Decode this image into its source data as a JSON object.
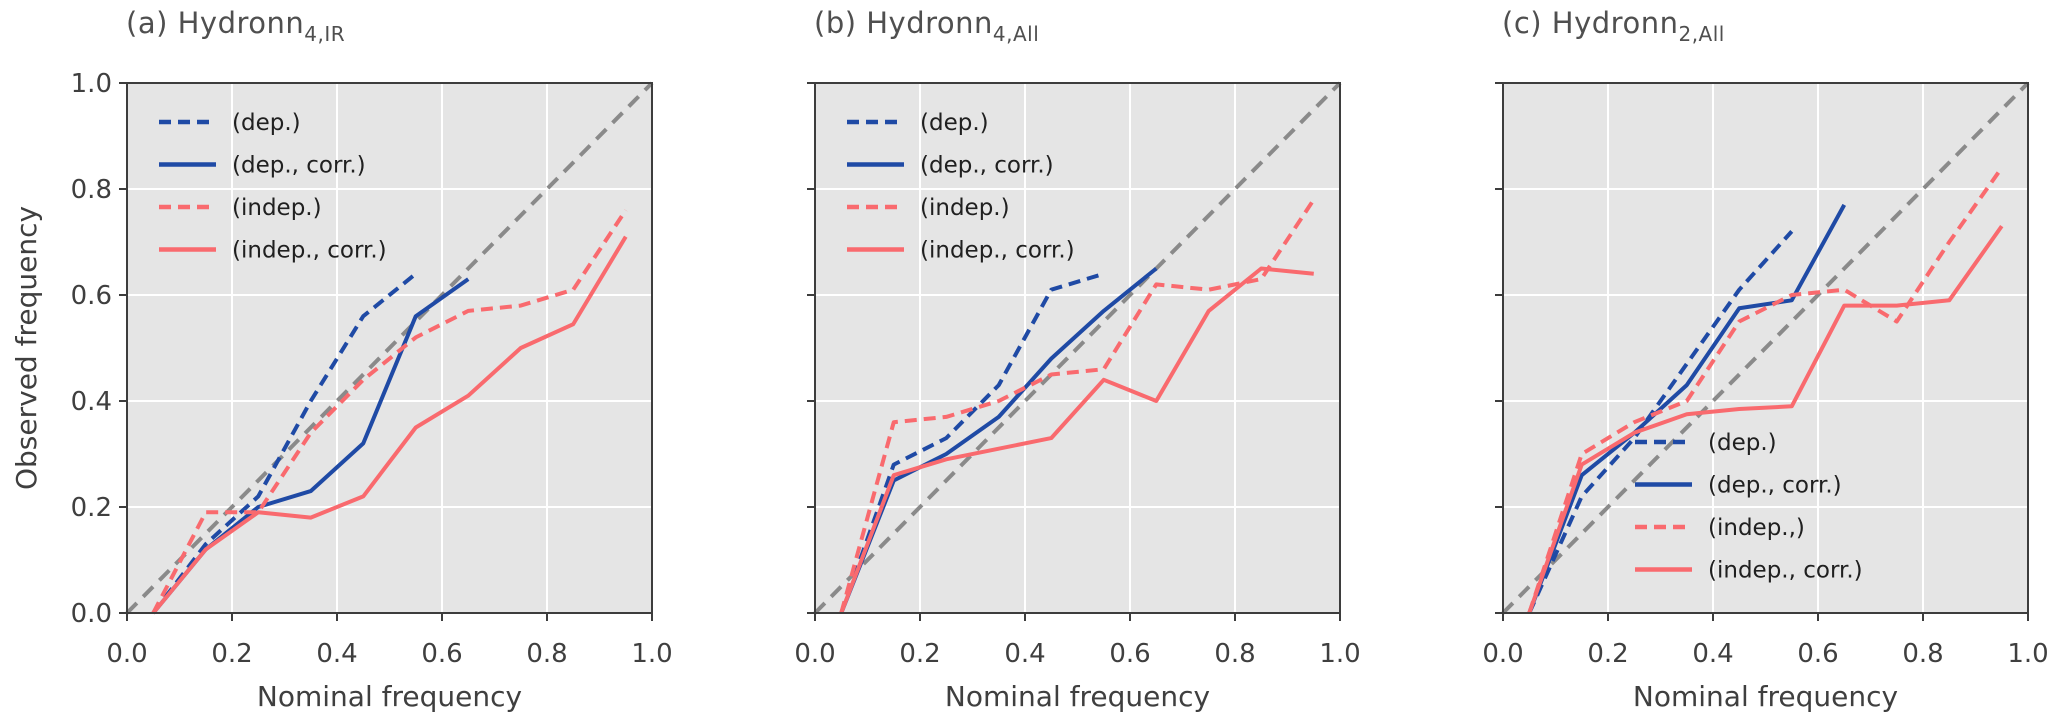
{
  "axis": {
    "xlabel": "Nominal frequency",
    "ylabel": "Observed frequency",
    "tick_labels": [
      "0.0",
      "0.2",
      "0.4",
      "0.6",
      "0.8",
      "1.0"
    ],
    "tick_values": [
      0,
      0.2,
      0.4,
      0.6,
      0.8,
      1
    ],
    "xlim": [
      0,
      1
    ],
    "ylim": [
      0,
      1
    ],
    "grid": true
  },
  "palette": {
    "blue": "#1f4aa5",
    "red": "#f96a6e",
    "diagonal_gray": "#8a8a8a",
    "plot_background": "#e5e5e5",
    "gridline": "#ffffff",
    "spine": "#3d3d3d",
    "tick_text": "#3f3f3f",
    "title_text": "#4f4f4f",
    "legend_text": "#202020"
  },
  "chart_data": [
    {
      "id": "a",
      "type": "line",
      "title_main": "(a) Hydronn",
      "title_sub": "4,IR",
      "legend_position": "upper-left",
      "diagonal_reference": true,
      "series": [
        {
          "key": "dep",
          "label": "(dep.)",
          "color": "#1f4aa5",
          "dashed": true,
          "x": [
            0.05,
            0.15,
            0.25,
            0.35,
            0.45,
            0.55
          ],
          "y": [
            0.0,
            0.13,
            0.22,
            0.4,
            0.56,
            0.64
          ]
        },
        {
          "key": "dep_corr",
          "label": "(dep., corr.)",
          "color": "#1f4aa5",
          "dashed": false,
          "x": [
            0.05,
            0.15,
            0.25,
            0.35,
            0.45,
            0.55,
            0.65
          ],
          "y": [
            0.0,
            0.12,
            0.2,
            0.23,
            0.32,
            0.56,
            0.63
          ]
        },
        {
          "key": "indep",
          "label": "(indep.)",
          "color": "#f96a6e",
          "dashed": true,
          "x": [
            0.05,
            0.15,
            0.25,
            0.35,
            0.45,
            0.55,
            0.65,
            0.75,
            0.85,
            0.95
          ],
          "y": [
            0.0,
            0.19,
            0.19,
            0.34,
            0.44,
            0.52,
            0.57,
            0.58,
            0.61,
            0.76
          ]
        },
        {
          "key": "indep_corr",
          "label": "(indep., corr.)",
          "color": "#f96a6e",
          "dashed": false,
          "x": [
            0.05,
            0.15,
            0.25,
            0.35,
            0.45,
            0.55,
            0.65,
            0.75,
            0.85,
            0.95
          ],
          "y": [
            0.0,
            0.12,
            0.19,
            0.18,
            0.22,
            0.35,
            0.41,
            0.5,
            0.545,
            0.71
          ]
        }
      ]
    },
    {
      "id": "b",
      "type": "line",
      "title_main": "(b) Hydronn",
      "title_sub": "4,All",
      "legend_position": "upper-left",
      "diagonal_reference": true,
      "series": [
        {
          "key": "dep",
          "label": "(dep.)",
          "color": "#1f4aa5",
          "dashed": true,
          "x": [
            0.05,
            0.15,
            0.25,
            0.35,
            0.45,
            0.55
          ],
          "y": [
            0.0,
            0.28,
            0.33,
            0.43,
            0.61,
            0.64
          ]
        },
        {
          "key": "dep_corr",
          "label": "(dep., corr.)",
          "color": "#1f4aa5",
          "dashed": false,
          "x": [
            0.05,
            0.15,
            0.25,
            0.35,
            0.45,
            0.55,
            0.65
          ],
          "y": [
            0.0,
            0.25,
            0.3,
            0.37,
            0.48,
            0.57,
            0.65
          ]
        },
        {
          "key": "indep",
          "label": "(indep.)",
          "color": "#f96a6e",
          "dashed": true,
          "x": [
            0.05,
            0.15,
            0.25,
            0.35,
            0.45,
            0.55,
            0.65,
            0.75,
            0.85,
            0.95
          ],
          "y": [
            0.0,
            0.36,
            0.37,
            0.4,
            0.45,
            0.46,
            0.62,
            0.61,
            0.63,
            0.78
          ]
        },
        {
          "key": "indep_corr",
          "label": "(indep., corr.)",
          "color": "#f96a6e",
          "dashed": false,
          "x": [
            0.05,
            0.15,
            0.25,
            0.35,
            0.45,
            0.55,
            0.65,
            0.75,
            0.85,
            0.95
          ],
          "y": [
            0.0,
            0.26,
            0.29,
            0.31,
            0.33,
            0.44,
            0.4,
            0.57,
            0.65,
            0.64
          ]
        }
      ]
    },
    {
      "id": "c",
      "type": "line",
      "title_main": "(c) Hydronn",
      "title_sub": "2,All",
      "legend_position": "lower-right",
      "diagonal_reference": true,
      "series": [
        {
          "key": "dep",
          "label": "(dep.)",
          "color": "#1f4aa5",
          "dashed": true,
          "x": [
            0.05,
            0.15,
            0.25,
            0.35,
            0.45,
            0.55
          ],
          "y": [
            0.0,
            0.22,
            0.33,
            0.47,
            0.61,
            0.72
          ]
        },
        {
          "key": "dep_corr",
          "label": "(dep., corr.)",
          "color": "#1f4aa5",
          "dashed": false,
          "x": [
            0.05,
            0.15,
            0.25,
            0.35,
            0.45,
            0.55,
            0.65
          ],
          "y": [
            0.0,
            0.26,
            0.34,
            0.43,
            0.575,
            0.59,
            0.77
          ]
        },
        {
          "key": "indep",
          "label": "(indep.,)",
          "color": "#f96a6e",
          "dashed": true,
          "x": [
            0.05,
            0.15,
            0.25,
            0.35,
            0.45,
            0.55,
            0.65,
            0.75,
            0.85,
            0.95
          ],
          "y": [
            0.0,
            0.3,
            0.36,
            0.4,
            0.55,
            0.6,
            0.61,
            0.55,
            0.7,
            0.84
          ]
        },
        {
          "key": "indep_corr",
          "label": "(indep., corr.)",
          "color": "#f96a6e",
          "dashed": false,
          "x": [
            0.05,
            0.15,
            0.25,
            0.35,
            0.45,
            0.55,
            0.65,
            0.75,
            0.85,
            0.95
          ],
          "y": [
            0.0,
            0.28,
            0.34,
            0.375,
            0.385,
            0.39,
            0.58,
            0.58,
            0.59,
            0.73
          ]
        }
      ]
    }
  ]
}
